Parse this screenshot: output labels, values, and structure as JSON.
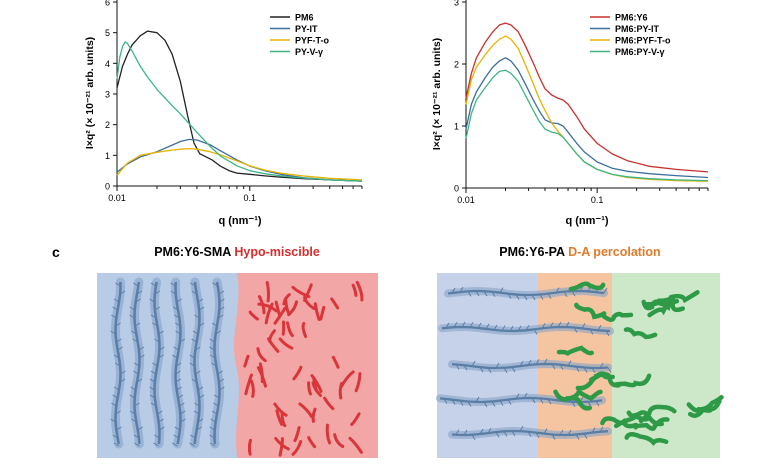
{
  "chart_data": [
    {
      "type": "line",
      "xscale": "log",
      "xlim": [
        0.01,
        0.7
      ],
      "ylim": [
        0,
        6
      ],
      "xlabel": "q (nm⁻¹)",
      "ylabel": "I×q² (× 10⁻²¹ arb. units)",
      "xticks": [
        "0.01",
        "0.1"
      ],
      "yticks": [
        "0",
        "1",
        "2",
        "3",
        "4",
        "5",
        "6"
      ],
      "legend_position": "top-right",
      "series": [
        {
          "name": "PM6",
          "color": "#222222",
          "x": [
            0.01,
            0.011,
            0.012,
            0.013,
            0.015,
            0.017,
            0.02,
            0.023,
            0.026,
            0.03,
            0.034,
            0.038,
            0.042,
            0.047,
            0.052,
            0.06,
            0.07,
            0.08,
            0.1,
            0.13,
            0.17,
            0.25,
            0.4,
            0.7
          ],
          "y": [
            3.2,
            3.9,
            4.3,
            4.6,
            4.9,
            5.05,
            5.0,
            4.75,
            4.3,
            3.4,
            2.3,
            1.4,
            1.05,
            0.95,
            0.85,
            0.65,
            0.5,
            0.42,
            0.38,
            0.33,
            0.29,
            0.24,
            0.2,
            0.16
          ]
        },
        {
          "name": "PY-IT",
          "color": "#3c6e9c",
          "x": [
            0.01,
            0.012,
            0.015,
            0.02,
            0.025,
            0.03,
            0.035,
            0.04,
            0.05,
            0.06,
            0.08,
            0.1,
            0.13,
            0.17,
            0.25,
            0.4,
            0.7
          ],
          "y": [
            0.45,
            0.72,
            0.95,
            1.12,
            1.3,
            1.45,
            1.52,
            1.5,
            1.35,
            1.15,
            0.85,
            0.65,
            0.5,
            0.38,
            0.27,
            0.2,
            0.16
          ]
        },
        {
          "name": "PYF-T-o",
          "color": "#e6b400",
          "x": [
            0.01,
            0.012,
            0.015,
            0.02,
            0.025,
            0.03,
            0.035,
            0.04,
            0.05,
            0.06,
            0.08,
            0.1,
            0.13,
            0.17,
            0.25,
            0.4,
            0.7
          ],
          "y": [
            0.35,
            0.75,
            1.0,
            1.1,
            1.16,
            1.2,
            1.22,
            1.2,
            1.12,
            1.02,
            0.82,
            0.66,
            0.52,
            0.42,
            0.33,
            0.25,
            0.2
          ]
        },
        {
          "name": "PY-V-γ",
          "color": "#3fb585",
          "x": [
            0.01,
            0.0105,
            0.011,
            0.0115,
            0.012,
            0.013,
            0.015,
            0.017,
            0.02,
            0.025,
            0.03,
            0.04,
            0.05,
            0.06,
            0.08,
            0.1,
            0.13,
            0.17,
            0.25,
            0.4,
            0.7
          ],
          "y": [
            3.5,
            4.2,
            4.55,
            4.7,
            4.65,
            4.4,
            3.9,
            3.55,
            3.15,
            2.7,
            2.35,
            1.75,
            1.3,
            0.98,
            0.66,
            0.5,
            0.4,
            0.33,
            0.26,
            0.2,
            0.16
          ]
        }
      ]
    },
    {
      "type": "line",
      "xscale": "log",
      "xlim": [
        0.01,
        0.7
      ],
      "ylim": [
        0,
        3
      ],
      "xlabel": "q (nm⁻¹)",
      "ylabel": "I×q² (× 10⁻²¹ arb. units)",
      "xticks": [
        "0.01",
        "0.1"
      ],
      "yticks": [
        "0",
        "1",
        "2",
        "3"
      ],
      "legend_position": "top-right",
      "series": [
        {
          "name": "PM6:Y6",
          "color": "#c8302d",
          "x": [
            0.01,
            0.011,
            0.012,
            0.014,
            0.016,
            0.018,
            0.02,
            0.022,
            0.025,
            0.028,
            0.032,
            0.036,
            0.04,
            0.045,
            0.05,
            0.055,
            0.06,
            0.07,
            0.08,
            0.1,
            0.13,
            0.17,
            0.25,
            0.4,
            0.7
          ],
          "y": [
            1.45,
            1.85,
            2.1,
            2.35,
            2.52,
            2.63,
            2.66,
            2.63,
            2.52,
            2.32,
            2.05,
            1.8,
            1.6,
            1.5,
            1.45,
            1.42,
            1.35,
            1.15,
            0.95,
            0.72,
            0.55,
            0.44,
            0.35,
            0.3,
            0.26
          ]
        },
        {
          "name": "PM6:PY-IT",
          "color": "#3c6e9c",
          "x": [
            0.01,
            0.011,
            0.012,
            0.014,
            0.016,
            0.018,
            0.02,
            0.022,
            0.025,
            0.028,
            0.032,
            0.036,
            0.04,
            0.045,
            0.05,
            0.055,
            0.06,
            0.07,
            0.08,
            0.1,
            0.13,
            0.17,
            0.25,
            0.4,
            0.7
          ],
          "y": [
            0.95,
            1.35,
            1.55,
            1.78,
            1.95,
            2.05,
            2.1,
            2.05,
            1.9,
            1.7,
            1.45,
            1.25,
            1.1,
            1.05,
            1.04,
            1.0,
            0.9,
            0.72,
            0.58,
            0.42,
            0.32,
            0.27,
            0.23,
            0.2,
            0.17
          ]
        },
        {
          "name": "PM6:PYF-T-o",
          "color": "#e6b400",
          "x": [
            0.01,
            0.011,
            0.012,
            0.014,
            0.016,
            0.018,
            0.02,
            0.022,
            0.025,
            0.028,
            0.032,
            0.036,
            0.04,
            0.045,
            0.05,
            0.055,
            0.06,
            0.07,
            0.08,
            0.1,
            0.13,
            0.17,
            0.25,
            0.4,
            0.7
          ],
          "y": [
            1.35,
            1.75,
            1.95,
            2.15,
            2.3,
            2.4,
            2.45,
            2.4,
            2.25,
            2.02,
            1.72,
            1.45,
            1.25,
            1.05,
            0.92,
            0.82,
            0.72,
            0.55,
            0.42,
            0.3,
            0.22,
            0.17,
            0.14,
            0.12,
            0.11
          ]
        },
        {
          "name": "PM6:PY-V-γ",
          "color": "#3fb585",
          "x": [
            0.01,
            0.011,
            0.012,
            0.014,
            0.016,
            0.018,
            0.02,
            0.022,
            0.025,
            0.028,
            0.032,
            0.036,
            0.04,
            0.045,
            0.05,
            0.055,
            0.06,
            0.07,
            0.08,
            0.1,
            0.13,
            0.17,
            0.25,
            0.4,
            0.7
          ],
          "y": [
            0.8,
            1.2,
            1.42,
            1.62,
            1.78,
            1.88,
            1.9,
            1.85,
            1.72,
            1.52,
            1.28,
            1.08,
            0.95,
            0.9,
            0.88,
            0.82,
            0.72,
            0.55,
            0.42,
            0.3,
            0.22,
            0.18,
            0.15,
            0.13,
            0.12
          ]
        }
      ]
    }
  ],
  "panel_c": {
    "label": "c",
    "left": {
      "title_main": "PM6:Y6-SMA",
      "title_accent": "Hypo-miscible",
      "accent_color": "#d32f2f"
    },
    "right": {
      "title_main": "PM6:Y6-PA",
      "title_accent": "D-A percolation",
      "accent_color": "#e07b2c"
    }
  },
  "colors": {
    "donor_region": "#b8cce6",
    "acceptor_region_left": "#f2a6a6",
    "interface_right": "#f4c5a0",
    "acceptor_region_right": "#cde8c8",
    "donor_chain": "#5a7ea6",
    "acceptor_left": "#d9353a",
    "acceptor_right": "#2e9a48"
  }
}
